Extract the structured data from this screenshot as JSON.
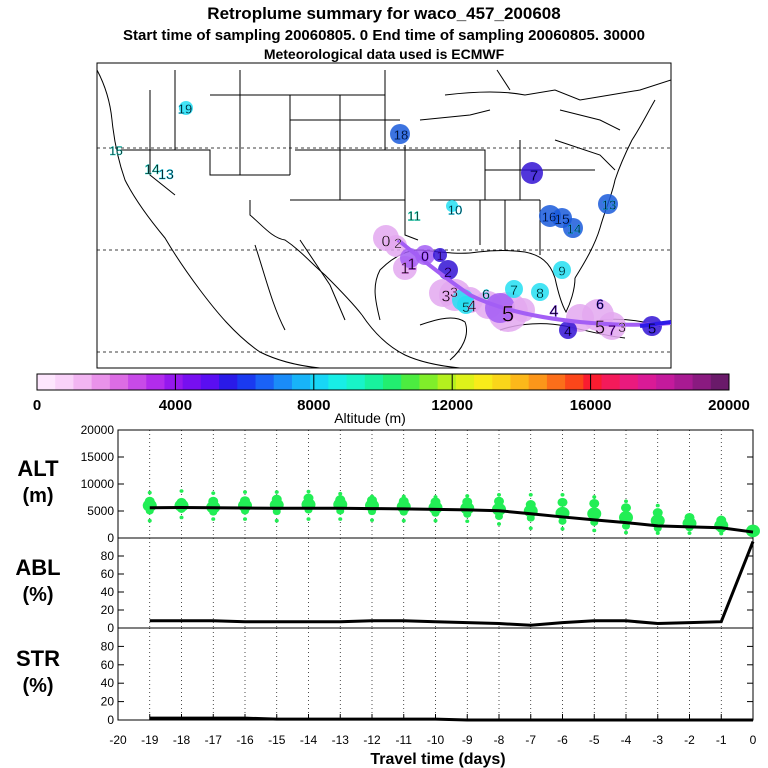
{
  "header": {
    "title": "Retroplume summary for waco_457_200608",
    "subtitle": "Start time of sampling 20060805.     0     End time of sampling 20060805. 30000",
    "met": "Meteorological data used is ECMWF"
  },
  "colorbar": {
    "label": "Altitude (m)",
    "ticks": [
      "0",
      "4000",
      "8000",
      "12000",
      "16000",
      "20000"
    ],
    "colors": [
      "#fde6fd",
      "#f9d2f9",
      "#f2b5f2",
      "#e992ea",
      "#dc6ce4",
      "#c84ae8",
      "#b22cec",
      "#9518ee",
      "#770ff0",
      "#5a0ef2",
      "#2a1ae8",
      "#1a3af0",
      "#1a62f6",
      "#1a8cf8",
      "#18b4f8",
      "#18d6f6",
      "#18eee6",
      "#18f4c8",
      "#18f29e",
      "#22ee70",
      "#4cec40",
      "#80ee2a",
      "#b4f01e",
      "#def21a",
      "#f8ec1a",
      "#fad61a",
      "#fcb81a",
      "#fc961a",
      "#fc6e1a",
      "#fc461a",
      "#fa1c30",
      "#f41a5a",
      "#ea1a7e",
      "#da1a96",
      "#c41a9c",
      "#a81a92",
      "#8a1a80",
      "#6a1a6a"
    ]
  },
  "map": {
    "plume_colors": {
      "purple": "#a35ef5",
      "pink": "#e3a8f0",
      "dark_blue": "#3213d4",
      "blue": "#1a5bdb",
      "cyan": "#24dff2",
      "navy_track": "#2d1ae8"
    },
    "markers": [
      {
        "label": "19",
        "color": "#18c8ee"
      },
      {
        "label": "18",
        "color": "#1a5ad8"
      },
      {
        "label": "15",
        "color": "#22ddd0"
      },
      {
        "label": "14",
        "color": "#22ddd0"
      },
      {
        "label": "13",
        "color": "#18d6f6"
      },
      {
        "label": "11",
        "color": "#18eec8"
      },
      {
        "label": "10",
        "color": "#18d6f6"
      },
      {
        "label": "7",
        "color": "#2a1ae8"
      },
      {
        "label": "16",
        "color": "#1a62f6"
      },
      {
        "label": "15",
        "color": "#1a62f6"
      },
      {
        "label": "14",
        "color": "#18b4f8"
      },
      {
        "label": "13",
        "color": "#18b4f8"
      },
      {
        "label": "9",
        "color": "#24dff2"
      },
      {
        "label": "8",
        "color": "#24dff2"
      },
      {
        "label": "7",
        "color": "#24dff2"
      },
      {
        "label": "6",
        "color": "#24dff2"
      },
      {
        "label": "5",
        "color": "#24dff2"
      },
      {
        "label": "0",
        "color": "#f2b5f2"
      },
      {
        "label": "2",
        "color": "#f2b5f2"
      },
      {
        "label": "1",
        "color": "#dc6ce4"
      },
      {
        "label": "1",
        "color": "#b22cec"
      },
      {
        "label": "0",
        "color": "#770ff0"
      },
      {
        "label": "1",
        "color": "#5a0ef2"
      },
      {
        "label": "2",
        "color": "#5a0ef2"
      },
      {
        "label": "3",
        "color": "#e992ea"
      },
      {
        "label": "3",
        "color": "#e992ea"
      },
      {
        "label": "4",
        "color": "#e992ea"
      },
      {
        "label": "5",
        "color": "#dc6ce4"
      },
      {
        "label": "4",
        "color": "#3a14d8"
      },
      {
        "label": "4",
        "color": "#6a18e8"
      },
      {
        "label": "5",
        "color": "#e992ea"
      },
      {
        "label": "3",
        "color": "#f2b5f2"
      },
      {
        "label": "5",
        "color": "#2a1ae8"
      },
      {
        "label": "6",
        "color": "#3a14d8"
      },
      {
        "label": "7",
        "color": "#9518ee"
      }
    ]
  },
  "chart_data": [
    {
      "type": "scatter",
      "name": "ALT",
      "ylabel_line1": "ALT",
      "ylabel_line2": "(m)",
      "x": [
        -19,
        -18,
        -17,
        -16,
        -15,
        -14,
        -13,
        -12,
        -11,
        -10,
        -9,
        -8,
        -7,
        -6,
        -5,
        -4,
        -3,
        -2,
        -1,
        0
      ],
      "ylim": [
        0,
        20000
      ],
      "yticks": [
        "0",
        "5000",
        "10000",
        "15000",
        "20000"
      ],
      "median": [
        5600,
        5650,
        5600,
        5550,
        5500,
        5500,
        5500,
        5450,
        5400,
        5300,
        5200,
        5050,
        4500,
        3900,
        3350,
        2850,
        2250,
        2050,
        1900,
        1100
      ],
      "spread": [
        [
          3200,
          5000,
          6000,
          6800,
          8400
        ],
        [
          3800,
          5300,
          6000,
          6600,
          8700
        ],
        [
          3500,
          4800,
          5700,
          6800,
          8300
        ],
        [
          3500,
          5000,
          6000,
          6900,
          8500
        ],
        [
          3200,
          4900,
          6100,
          7200,
          8500
        ],
        [
          3500,
          5200,
          6200,
          7400,
          8600
        ],
        [
          3500,
          5000,
          6200,
          7100,
          8200
        ],
        [
          3300,
          4900,
          6000,
          7000,
          7700
        ],
        [
          3200,
          4800,
          5800,
          6800,
          7700
        ],
        [
          3200,
          4600,
          5600,
          6700,
          7600
        ],
        [
          3100,
          4400,
          5500,
          6700,
          7800
        ],
        [
          2600,
          4000,
          5300,
          6800,
          8000
        ],
        [
          1800,
          3700,
          5000,
          6200,
          8000
        ],
        [
          1700,
          3100,
          4600,
          6600,
          8000
        ],
        [
          1400,
          2900,
          4500,
          6400,
          7600
        ],
        [
          1000,
          2200,
          3800,
          5600,
          6800
        ],
        [
          900,
          1800,
          3200,
          4700,
          6000
        ],
        [
          900,
          1900,
          2700,
          3800,
          4200
        ],
        [
          800,
          1600,
          2300,
          3300,
          3800
        ],
        [
          500,
          1000,
          1300,
          1600,
          1800
        ]
      ]
    },
    {
      "type": "line",
      "name": "ABL",
      "ylabel_line1": "ABL",
      "ylabel_line2": "(%)",
      "x": [
        -19,
        -18,
        -17,
        -16,
        -15,
        -14,
        -13,
        -12,
        -11,
        -10,
        -9,
        -8,
        -7,
        -6,
        -5,
        -4,
        -3,
        -2,
        -1,
        0
      ],
      "ylim": [
        0,
        100
      ],
      "yticks": [
        "0",
        "20",
        "40",
        "60",
        "80"
      ],
      "values": [
        8,
        8,
        8,
        7,
        7,
        7,
        7,
        8,
        8,
        7,
        6,
        5,
        3,
        6,
        8,
        8,
        5,
        6,
        7,
        96
      ]
    },
    {
      "type": "line",
      "name": "STR",
      "ylabel_line1": "STR",
      "ylabel_line2": "(%)",
      "x": [
        -19,
        -18,
        -17,
        -16,
        -15,
        -14,
        -13,
        -12,
        -11,
        -10,
        -9,
        -8,
        -7,
        -6,
        -5,
        -4,
        -3,
        -2,
        -1,
        0
      ],
      "ylim": [
        0,
        100
      ],
      "yticks": [
        "0",
        "20",
        "40",
        "60",
        "80"
      ],
      "values": [
        2,
        2,
        2,
        2,
        1,
        1,
        1,
        1,
        1,
        1,
        0,
        0,
        0,
        0,
        0,
        0,
        0,
        0,
        0,
        0
      ]
    }
  ],
  "x_axis": {
    "ticks": [
      "-20",
      "-19",
      "-18",
      "-17",
      "-16",
      "-15",
      "-14",
      "-13",
      "-12",
      "-11",
      "-10",
      "-9",
      "-8",
      "-7",
      "-6",
      "-5",
      "-4",
      "-3",
      "-2",
      "-1",
      "0"
    ],
    "xlabel": "Travel time (days)"
  },
  "colors": {
    "scatter": "#22ee55",
    "line": "#000000"
  }
}
